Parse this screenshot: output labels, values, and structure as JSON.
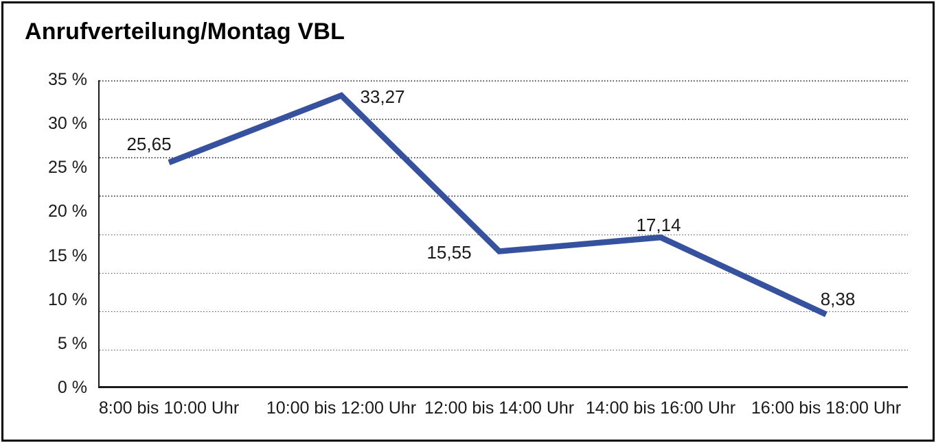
{
  "title": "Anrufverteilung/Montag VBL",
  "chart_data": {
    "type": "line",
    "title": "Anrufverteilung/Montag VBL",
    "categories": [
      "8:00 bis 10:00 Uhr",
      "10:00 bis 12:00 Uhr",
      "12:00 bis 14:00 Uhr",
      "14:00 bis 16:00 Uhr",
      "16:00 bis 18:00 Uhr"
    ],
    "values": [
      25.65,
      33.27,
      15.55,
      17.14,
      8.38
    ],
    "point_labels": [
      "25,65",
      "33,27",
      "15,55",
      "17,14",
      "8,38"
    ],
    "y_tick_labels": [
      "0 %",
      "5 %",
      "10 %",
      "15 %",
      "20 %",
      "25 %",
      "30 %",
      "35 %"
    ],
    "ylim": [
      0,
      35
    ],
    "y_step": 5,
    "xlabel": "",
    "ylabel": "",
    "grid": "horizontal-dotted",
    "legend": "none",
    "line_color": "#36519E",
    "axis_color": "#1a1a1a",
    "text_color": "#1a1a1a"
  }
}
